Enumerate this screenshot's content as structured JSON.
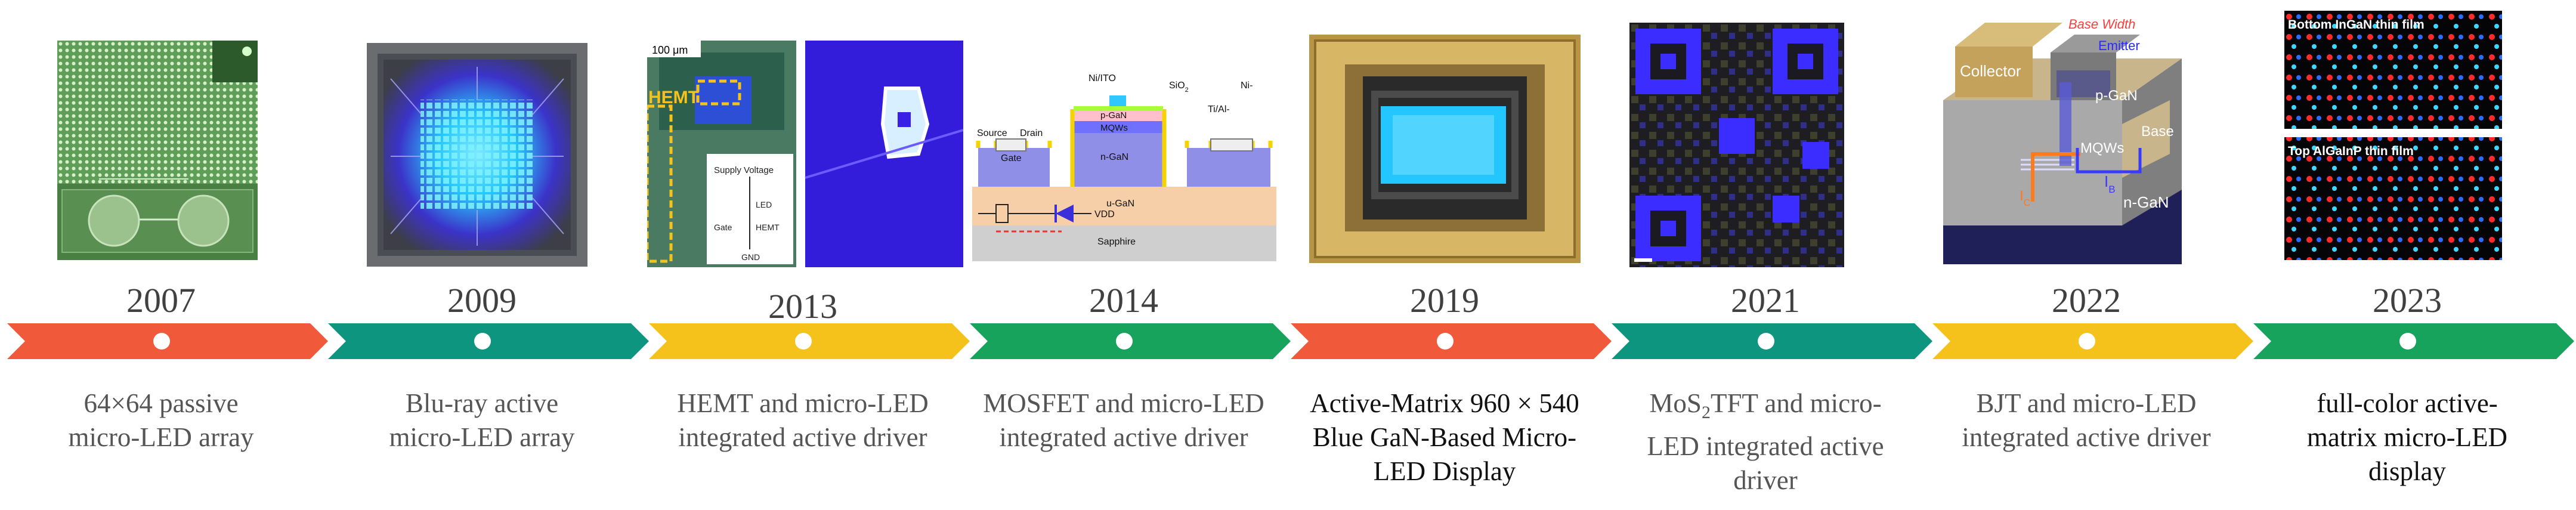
{
  "colors": {
    "orange": "#f05a3a",
    "teal": "#0e9580",
    "yellow": "#f5c21b",
    "green": "#17a35b",
    "blue_led": "#27c8ff",
    "navy": "#1b1a85"
  },
  "milestones": [
    {
      "year": "2007",
      "color": "orange",
      "description": [
        "64×64 passive",
        "micro-LED array"
      ]
    },
    {
      "year": "2009",
      "color": "teal",
      "description": [
        "Blu-ray active",
        "micro-LED array"
      ]
    },
    {
      "year": "2013",
      "color": "yellow",
      "description": [
        "HEMT and micro-LED",
        "integrated active driver"
      ]
    },
    {
      "year": "2014",
      "color": "green",
      "description": [
        "MOSFET and micro-LED",
        "integrated active driver"
      ]
    },
    {
      "year": "2019",
      "color": "orange",
      "description": [
        "Active-Matrix 960 × 540",
        "Blue GaN-Based Micro-",
        "LED Display"
      ]
    },
    {
      "year": "2021",
      "color": "teal",
      "description": [
        "MoS",
        "2",
        "TFT and micro-",
        "LED integrated active",
        "driver"
      ]
    },
    {
      "year": "2022",
      "color": "yellow",
      "description": [
        "BJT and micro-LED",
        "integrated active driver"
      ]
    },
    {
      "year": "2023",
      "color": "green",
      "description": [
        "full-color active-",
        "matrix micro-LED",
        "display"
      ]
    }
  ],
  "images": {
    "hemt": {
      "scale": "100 μm",
      "hemt_label": "HEMT",
      "supply": "Supply Voltage",
      "led": "LED",
      "gate": "Gate",
      "hemt": "HEMT",
      "gnd": "GND"
    },
    "mosfet": {
      "ni_ito": "Ni/ITO",
      "sio2": "SiO",
      "sio2_sub": "2",
      "ni": "Ni-",
      "ti_al": "Ti/Al-",
      "source": "Source",
      "drain": "Drain",
      "gate": "Gate",
      "p_gan": "p-GaN",
      "mqws": "MQWs",
      "n_gan": "n-GaN",
      "u_gan": "u-GaN",
      "vdd": "VDD",
      "sapphire": "Sapphire"
    },
    "bjt": {
      "collector": "Collector",
      "base_width": "Base Width",
      "emitter": "Emitter",
      "p_gan": "p-GaN",
      "mqws": "MQWs",
      "base": "Base",
      "ic": "I",
      "ic_sub": "C",
      "ib": "I",
      "ib_sub": "B",
      "n_gan": "n-GaN"
    },
    "fullcolor": {
      "top_label": "Bottom InGaN thin film",
      "bottom_label": "Top AlGaInP thin film"
    }
  }
}
